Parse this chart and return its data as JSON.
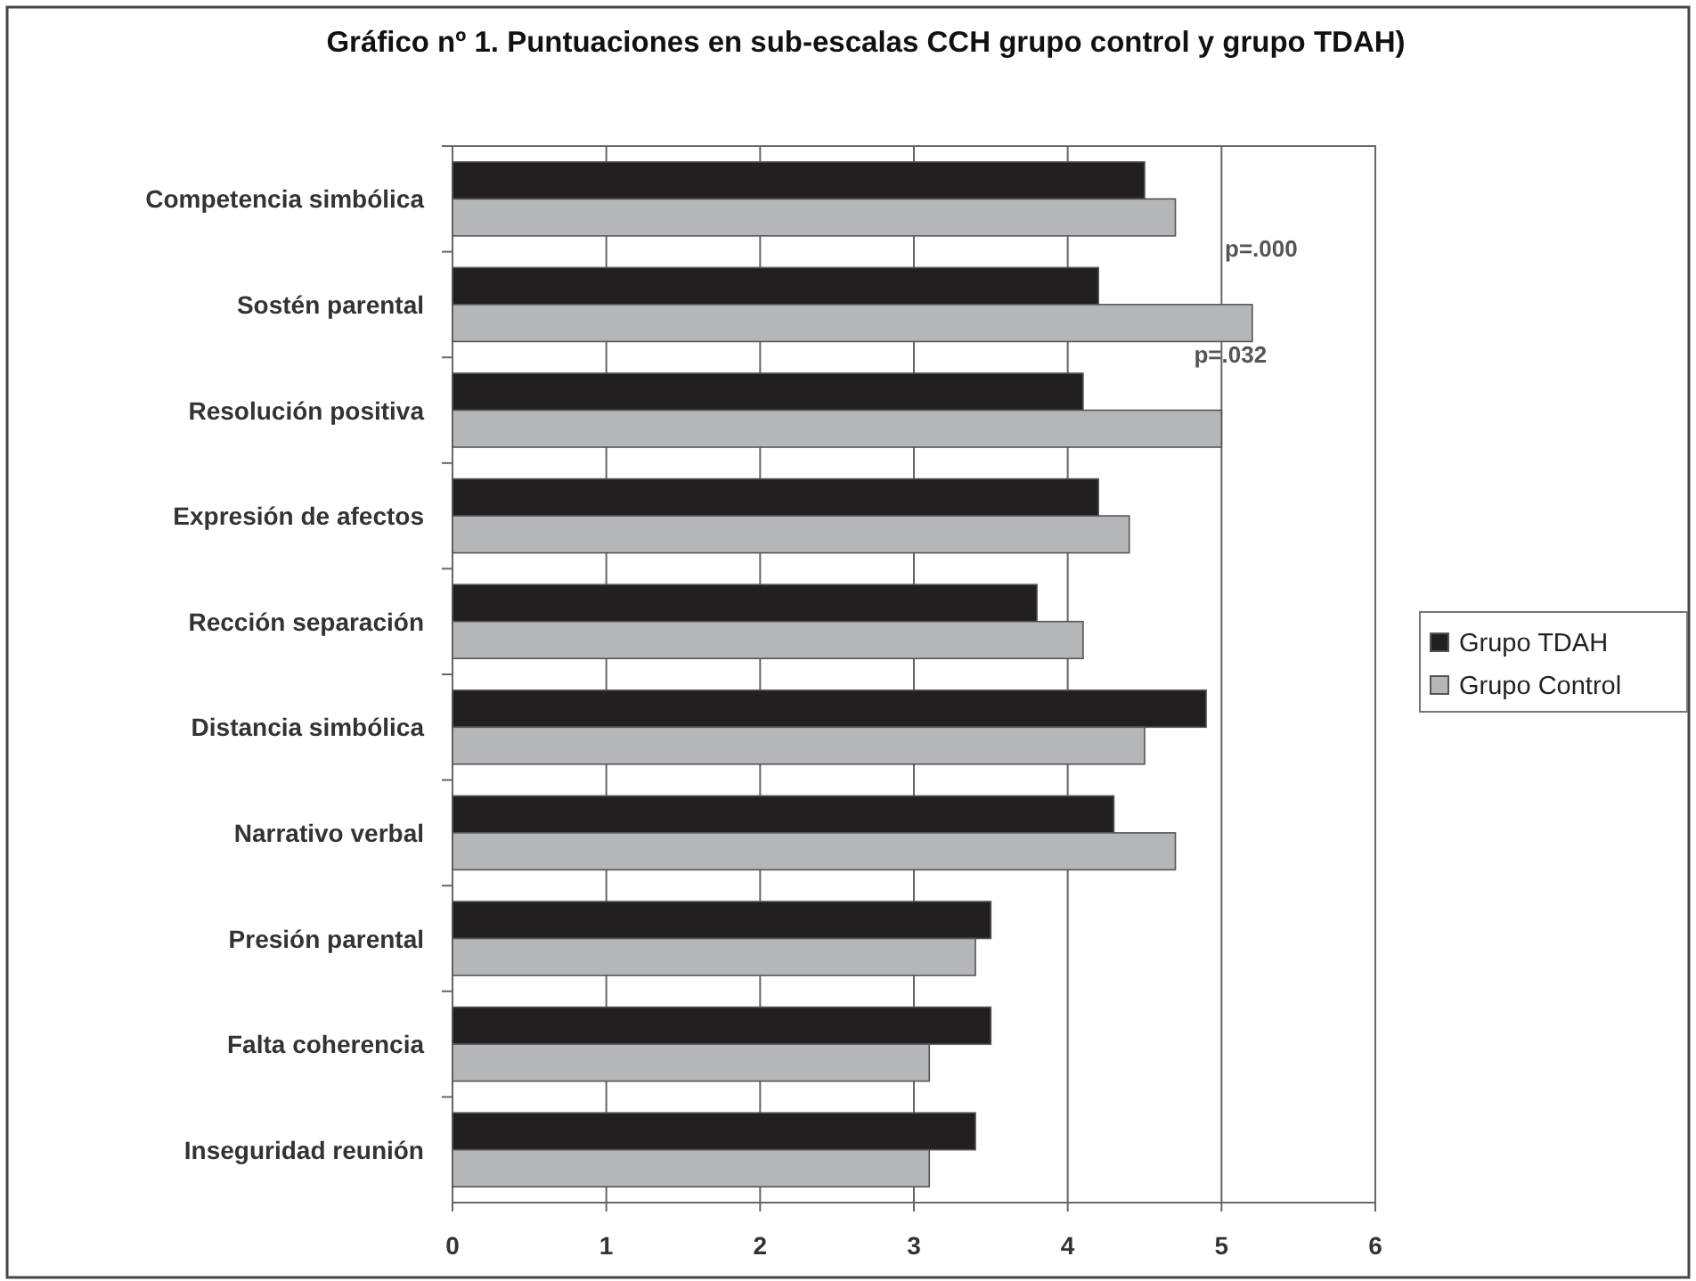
{
  "chart_data": {
    "type": "bar",
    "orientation": "horizontal",
    "title": "Gráfico nº 1.  Puntuaciones en sub-escalas CCH grupo control y grupo TDAH)",
    "categories": [
      "Competencia simbólica",
      "Sostén parental",
      "Resolución positiva",
      "Expresión de afectos",
      "Rección separación",
      "Distancia simbólica",
      "Narrativo verbal",
      "Presión parental",
      "Falta coherencia",
      "Inseguridad reunión"
    ],
    "series": [
      {
        "name": "Grupo TDAH",
        "color": "#231f20",
        "values": [
          4.5,
          4.2,
          4.1,
          4.2,
          3.8,
          4.9,
          4.3,
          3.5,
          3.5,
          3.4
        ]
      },
      {
        "name": "Grupo Control",
        "color": "#b5b6ba",
        "values": [
          4.7,
          5.2,
          5.0,
          4.4,
          4.1,
          4.5,
          4.7,
          3.4,
          3.1,
          3.1
        ]
      }
    ],
    "xlim": [
      0,
      6
    ],
    "xticks": [
      0,
      1,
      2,
      3,
      4,
      5,
      6
    ],
    "grid": "x",
    "legend": "right",
    "annotations": [
      {
        "text": "p=.000",
        "x": 5.2,
        "y": "Sostén parental"
      },
      {
        "text": "p=.032",
        "x": 5.0,
        "y": "Resolución positiva"
      }
    ]
  }
}
